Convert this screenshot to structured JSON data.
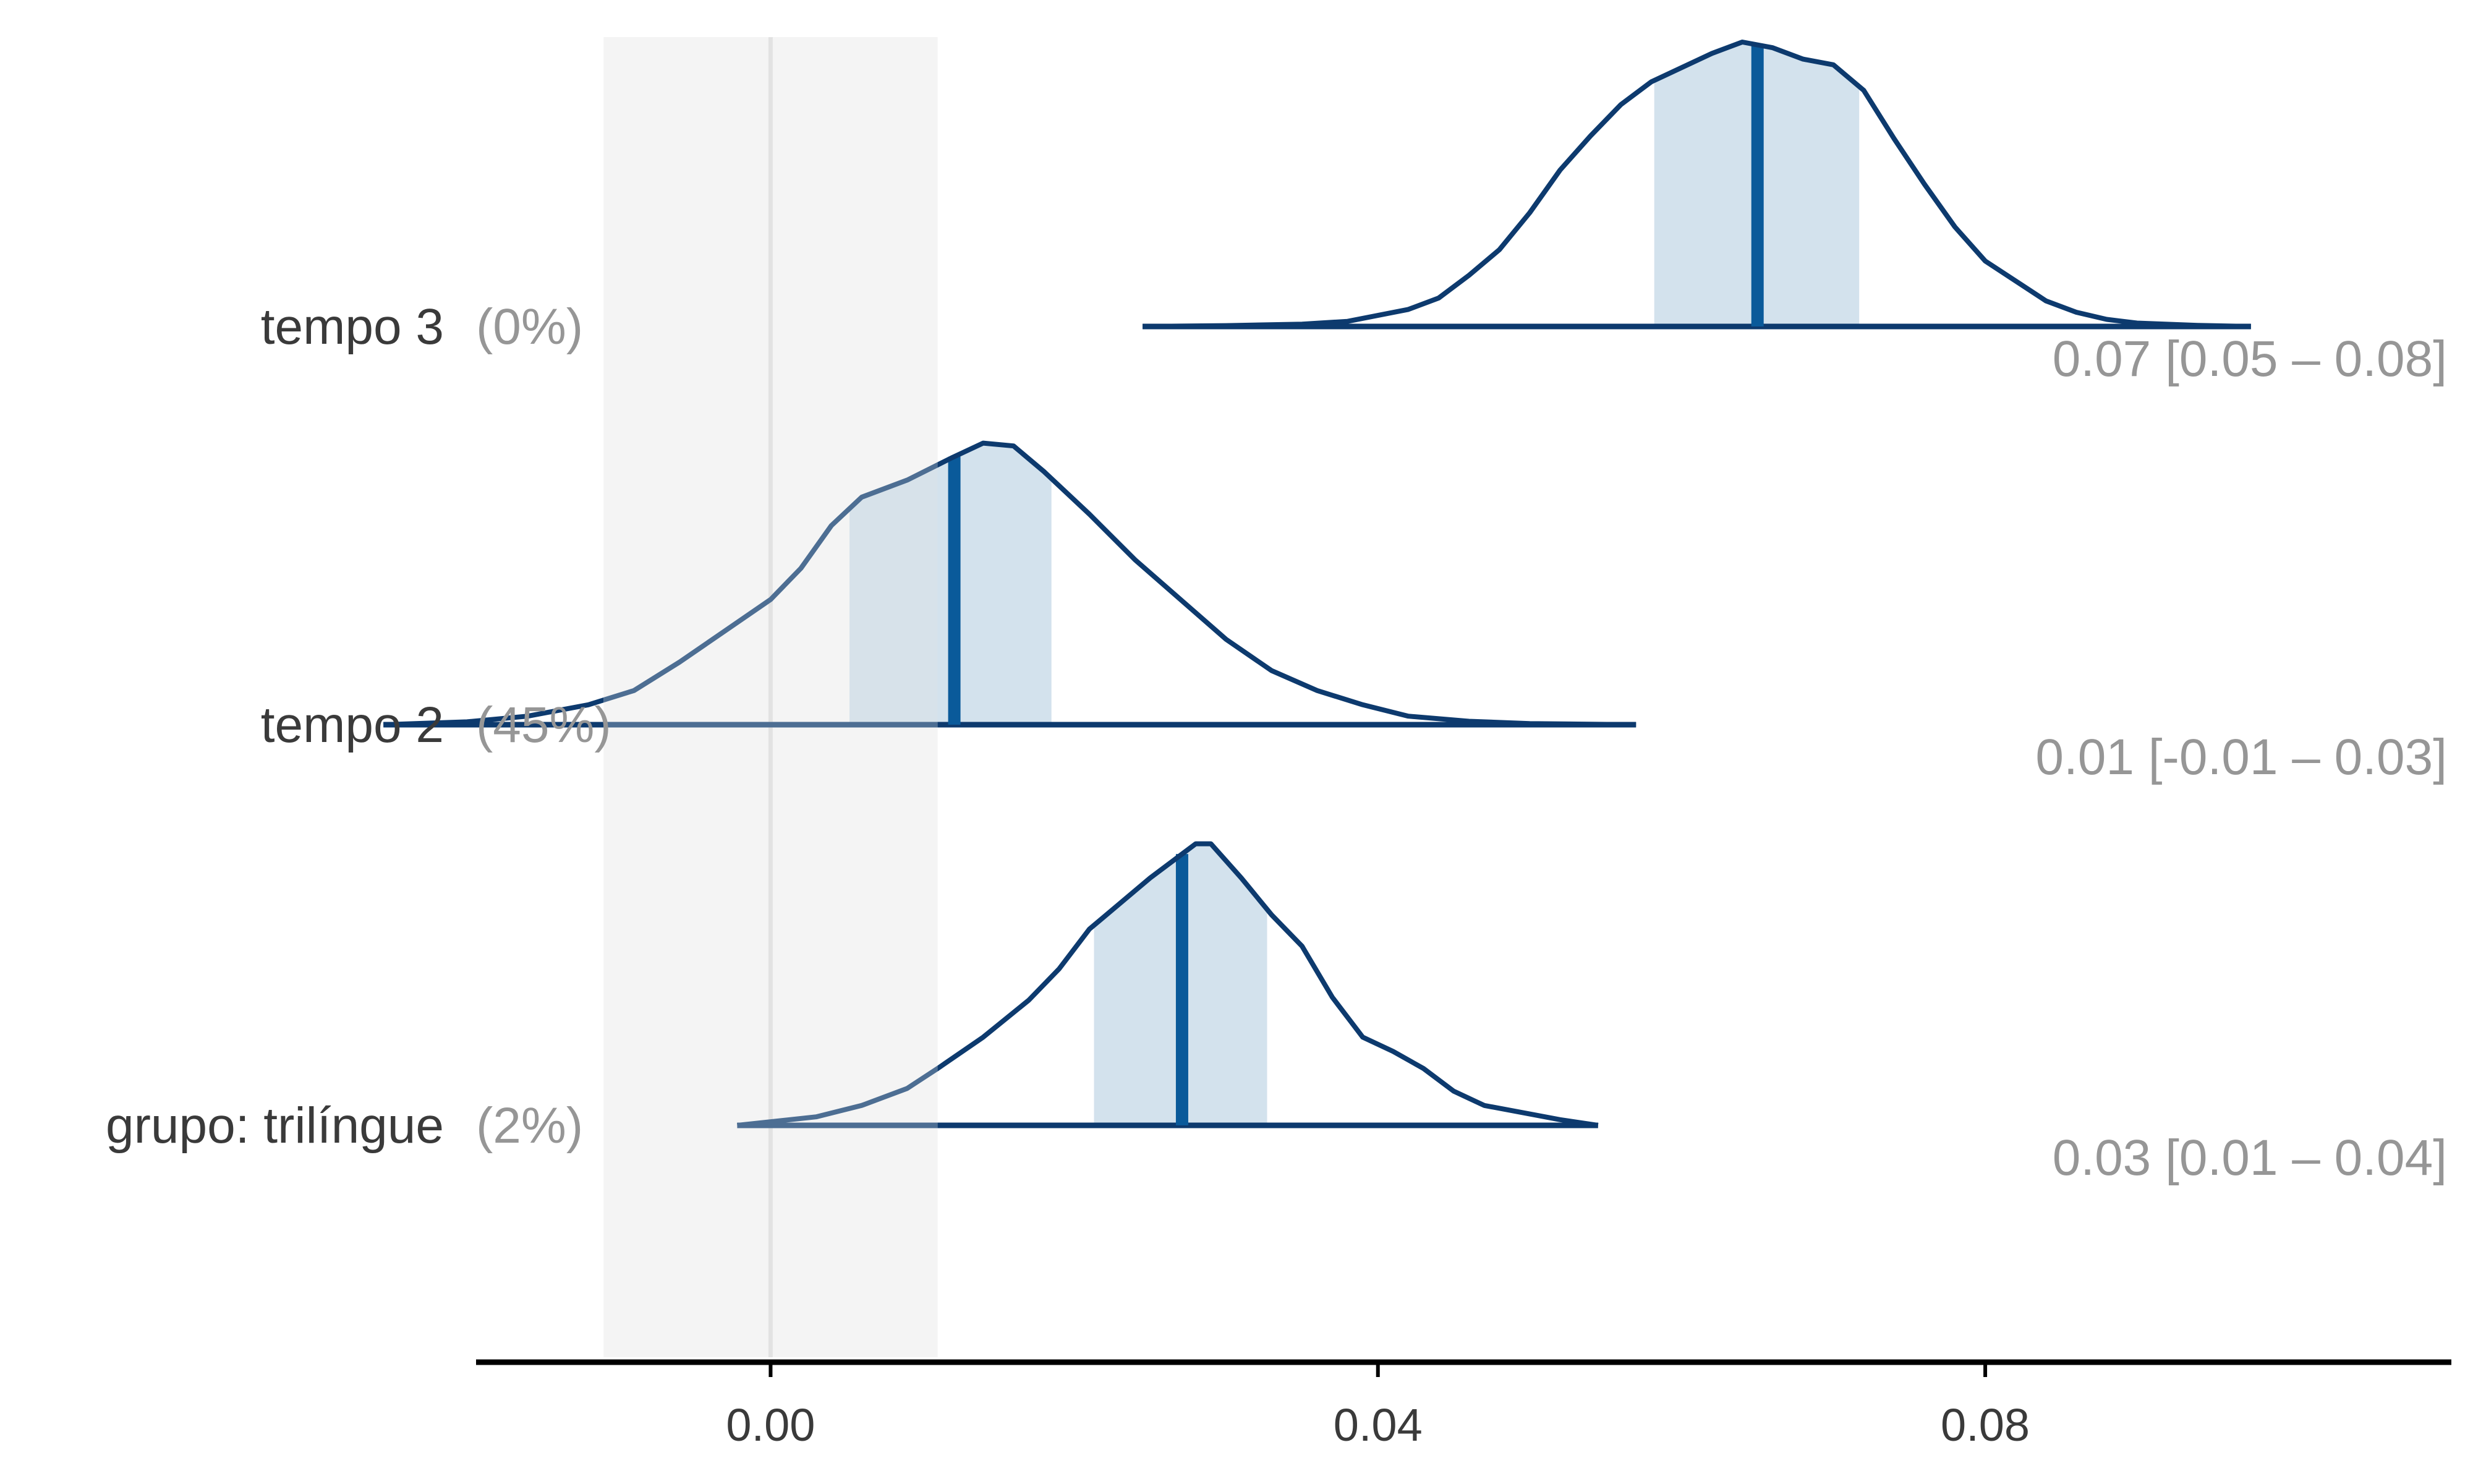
{
  "chart_data": {
    "type": "ridgeline",
    "xlim": [
      -0.0194,
      0.1107
    ],
    "x_ticks": [
      "0.00",
      "0.04",
      "0.08"
    ],
    "x_tick_values": [
      0.0,
      0.04,
      0.08
    ],
    "rope": {
      "low": -0.011,
      "high": 0.011
    },
    "zero_line": 0.0,
    "grid": false,
    "colors": {
      "curve": "#0d3a6e",
      "curve_in_rope": "#4d6e93",
      "interval_fill": "#d3e2ed",
      "interval_fill_in_rope": "#d7e2ea",
      "median_line": "#0a5a9a",
      "rope_band": "#f4f4f4",
      "zero_line": "#e2e2e2",
      "label": "#3a3a3a",
      "muted": "#969696",
      "axis": "#000000"
    },
    "rows": [
      {
        "label": "tempo 3",
        "pct_in_rope": "(0%)",
        "estimate": "0.07 [0.05 – 0.08]",
        "median": 0.065,
        "ci_low": 0.0582,
        "ci_high": 0.0717,
        "density": [
          [
            0.0245,
            0
          ],
          [
            0.03,
            0.003
          ],
          [
            0.035,
            0.008
          ],
          [
            0.038,
            0.018
          ],
          [
            0.042,
            0.06
          ],
          [
            0.044,
            0.1
          ],
          [
            0.046,
            0.18
          ],
          [
            0.048,
            0.27
          ],
          [
            0.05,
            0.4
          ],
          [
            0.052,
            0.55
          ],
          [
            0.054,
            0.67
          ],
          [
            0.056,
            0.78
          ],
          [
            0.058,
            0.86
          ],
          [
            0.06,
            0.91
          ],
          [
            0.062,
            0.96
          ],
          [
            0.064,
            1.0
          ],
          [
            0.066,
            0.98
          ],
          [
            0.068,
            0.94
          ],
          [
            0.07,
            0.92
          ],
          [
            0.072,
            0.83
          ],
          [
            0.074,
            0.66
          ],
          [
            0.076,
            0.5
          ],
          [
            0.078,
            0.35
          ],
          [
            0.08,
            0.23
          ],
          [
            0.082,
            0.16
          ],
          [
            0.084,
            0.09
          ],
          [
            0.086,
            0.05
          ],
          [
            0.088,
            0.025
          ],
          [
            0.09,
            0.012
          ],
          [
            0.094,
            0.004
          ],
          [
            0.0975,
            0
          ]
        ]
      },
      {
        "label": "tempo 2",
        "pct_in_rope": "(45%)",
        "estimate": "0.01 [-0.01 – 0.03]",
        "median": 0.0121,
        "ci_low": 0.0052,
        "ci_high": 0.0185,
        "density": [
          [
            -0.0255,
            0
          ],
          [
            -0.02,
            0.01
          ],
          [
            -0.016,
            0.03
          ],
          [
            -0.012,
            0.07
          ],
          [
            -0.009,
            0.12
          ],
          [
            -0.006,
            0.22
          ],
          [
            -0.003,
            0.33
          ],
          [
            0.0,
            0.44
          ],
          [
            0.002,
            0.55
          ],
          [
            0.004,
            0.7
          ],
          [
            0.006,
            0.8
          ],
          [
            0.009,
            0.86
          ],
          [
            0.012,
            0.94
          ],
          [
            0.014,
            0.99
          ],
          [
            0.016,
            0.98
          ],
          [
            0.018,
            0.89
          ],
          [
            0.021,
            0.74
          ],
          [
            0.024,
            0.58
          ],
          [
            0.027,
            0.44
          ],
          [
            0.03,
            0.3
          ],
          [
            0.033,
            0.19
          ],
          [
            0.036,
            0.12
          ],
          [
            0.039,
            0.07
          ],
          [
            0.042,
            0.03
          ],
          [
            0.046,
            0.012
          ],
          [
            0.05,
            0.004
          ],
          [
            0.057,
            0
          ]
        ]
      },
      {
        "label": "grupo: trilíngue",
        "pct_in_rope": "(2%)",
        "estimate": "0.03 [0.01 – 0.04]",
        "median": 0.0271,
        "ci_low": 0.0213,
        "ci_high": 0.0327,
        "density": [
          [
            -0.0022,
            0
          ],
          [
            0.003,
            0.03
          ],
          [
            0.006,
            0.07
          ],
          [
            0.009,
            0.13
          ],
          [
            0.011,
            0.2
          ],
          [
            0.014,
            0.31
          ],
          [
            0.017,
            0.44
          ],
          [
            0.019,
            0.55
          ],
          [
            0.021,
            0.69
          ],
          [
            0.023,
            0.78
          ],
          [
            0.025,
            0.87
          ],
          [
            0.027,
            0.95
          ],
          [
            0.028,
            0.99
          ],
          [
            0.029,
            0.99
          ],
          [
            0.031,
            0.87
          ],
          [
            0.033,
            0.74
          ],
          [
            0.035,
            0.63
          ],
          [
            0.037,
            0.45
          ],
          [
            0.039,
            0.31
          ],
          [
            0.041,
            0.26
          ],
          [
            0.043,
            0.2
          ],
          [
            0.045,
            0.12
          ],
          [
            0.047,
            0.07
          ],
          [
            0.05,
            0.04
          ],
          [
            0.052,
            0.02
          ],
          [
            0.0545,
            0
          ]
        ]
      }
    ]
  }
}
